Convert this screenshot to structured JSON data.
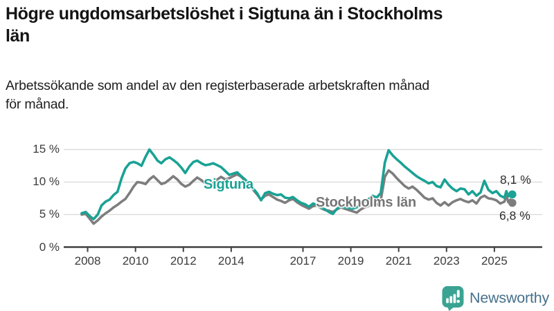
{
  "header": {
    "title_lines": [
      "Högre ungdomsarbetslöshet i Sigtuna än i Stockholms",
      "län"
    ],
    "subtitle_lines": [
      "Arbetssökande som andel av den registerbaserade arbetskraften månad",
      "för månad."
    ]
  },
  "chart_data": {
    "type": "line",
    "title": "Högre ungdomsarbetslöshet i Sigtuna än i Stockholms län",
    "subtitle": "Arbetssökande som andel av den registerbaserade arbetskraften månad för månad.",
    "unit": "%",
    "grid": "horizontal",
    "legend_position": "inline-labels",
    "x_axis": {
      "ticks": [
        2008,
        2010,
        2012,
        2014,
        2017,
        2019,
        2021,
        2023,
        2025
      ],
      "range": [
        2007.0,
        2027.0
      ]
    },
    "y_axis": {
      "tick_values": [
        0,
        5,
        10,
        15
      ],
      "tick_labels": [
        "0 %",
        "5 %",
        "10 %",
        "15 %"
      ],
      "range": [
        0,
        16
      ]
    },
    "x": [
      2007.75,
      2007.92,
      2008.08,
      2008.25,
      2008.42,
      2008.58,
      2008.75,
      2008.92,
      2009.08,
      2009.25,
      2009.42,
      2009.58,
      2009.75,
      2009.92,
      2010.08,
      2010.25,
      2010.42,
      2010.58,
      2010.75,
      2010.92,
      2011.08,
      2011.25,
      2011.42,
      2011.58,
      2011.75,
      2011.92,
      2012.08,
      2012.25,
      2012.42,
      2012.58,
      2012.75,
      2012.92,
      2013.08,
      2013.25,
      2013.42,
      2013.58,
      2013.75,
      2013.92,
      2014.08,
      2014.25,
      2014.42,
      2014.58,
      2014.75,
      2014.92,
      2015.08,
      2015.25,
      2015.42,
      2015.58,
      2015.75,
      2015.92,
      2016.08,
      2016.25,
      2016.42,
      2016.58,
      2016.75,
      2016.92,
      2017.08,
      2017.25,
      2017.42,
      2017.58,
      2017.75,
      2017.92,
      2018.08,
      2018.25,
      2018.42,
      2018.58,
      2018.75,
      2018.92,
      2019.08,
      2019.25,
      2019.42,
      2019.58,
      2019.75,
      2019.92,
      2020.08,
      2020.25,
      2020.42,
      2020.58,
      2020.75,
      2020.92,
      2021.08,
      2021.25,
      2021.42,
      2021.58,
      2021.75,
      2021.92,
      2022.08,
      2022.25,
      2022.42,
      2022.58,
      2022.75,
      2022.92,
      2023.08,
      2023.25,
      2023.42,
      2023.58,
      2023.75,
      2023.92,
      2024.08,
      2024.25,
      2024.42,
      2024.58,
      2024.75,
      2024.92,
      2025.08,
      2025.25,
      2025.42,
      2025.5,
      2025.58,
      2025.67,
      2025.75
    ],
    "series": [
      {
        "name": "Sigtuna",
        "color": "#19a295",
        "end_label": "8,1 %",
        "end_value": 8.1,
        "values": [
          5.2,
          5.4,
          4.8,
          4.3,
          5.0,
          6.4,
          7.0,
          7.3,
          8.0,
          8.5,
          10.6,
          12.1,
          12.9,
          13.1,
          12.9,
          12.5,
          13.9,
          15.0,
          14.2,
          13.3,
          12.9,
          13.5,
          13.8,
          13.4,
          12.9,
          12.2,
          11.4,
          12.4,
          13.1,
          13.3,
          12.9,
          12.6,
          12.7,
          12.9,
          12.6,
          12.3,
          11.7,
          11.1,
          11.3,
          11.5,
          10.9,
          10.4,
          9.7,
          9.0,
          8.3,
          7.2,
          8.3,
          8.5,
          8.2,
          8.0,
          8.1,
          7.6,
          7.5,
          7.7,
          7.2,
          6.8,
          6.6,
          6.2,
          6.7,
          6.5,
          6.1,
          5.8,
          5.4,
          5.1,
          5.9,
          6.3,
          6.1,
          6.0,
          5.9,
          6.1,
          6.6,
          7.0,
          7.4,
          7.9,
          7.6,
          8.3,
          13.0,
          14.9,
          14.1,
          13.5,
          13.0,
          12.4,
          11.9,
          11.4,
          10.9,
          10.5,
          10.2,
          9.8,
          10.0,
          9.4,
          9.2,
          10.4,
          9.6,
          9.0,
          8.6,
          9.0,
          8.9,
          8.1,
          8.6,
          7.9,
          8.4,
          10.2,
          8.8,
          8.3,
          8.6,
          7.9,
          7.6,
          8.6,
          7.8,
          8.4,
          8.1
        ]
      },
      {
        "name": "Stockholms län",
        "color": "#7d7d7d",
        "end_label": "6,8 %",
        "end_value": 6.8,
        "values": [
          5.0,
          5.1,
          4.4,
          3.6,
          4.1,
          4.7,
          5.2,
          5.6,
          6.1,
          6.5,
          7.0,
          7.4,
          8.3,
          9.3,
          10.0,
          9.9,
          9.7,
          10.4,
          10.9,
          10.3,
          9.7,
          9.9,
          10.4,
          10.9,
          10.4,
          9.7,
          9.3,
          9.6,
          10.2,
          10.7,
          10.3,
          9.8,
          9.4,
          9.9,
          10.4,
          10.8,
          10.4,
          10.6,
          10.9,
          11.2,
          10.8,
          10.2,
          9.5,
          8.8,
          8.1,
          7.3,
          7.9,
          8.1,
          7.7,
          7.3,
          7.1,
          6.8,
          7.2,
          7.4,
          6.9,
          6.5,
          6.2,
          5.9,
          6.3,
          6.4,
          6.0,
          5.7,
          5.6,
          5.4,
          5.8,
          6.1,
          5.9,
          5.7,
          5.5,
          5.3,
          5.8,
          6.1,
          6.3,
          6.6,
          6.5,
          7.2,
          10.8,
          11.8,
          11.3,
          10.6,
          10.0,
          9.4,
          9.0,
          9.3,
          8.8,
          8.2,
          7.6,
          7.3,
          7.5,
          6.8,
          6.4,
          6.9,
          6.4,
          6.9,
          7.2,
          7.4,
          7.1,
          6.9,
          7.2,
          6.7,
          7.6,
          7.9,
          7.5,
          7.4,
          7.2,
          6.7,
          7.0,
          8.0,
          6.9,
          7.3,
          6.8
        ]
      }
    ],
    "colors": {
      "axis": "#404040",
      "gridline": "#dadada",
      "tick_text": "#3b3b3b"
    }
  },
  "branding": {
    "logo_text": "Newsworthy",
    "logo_color": "#3aa392",
    "logo_text_color": "#46708c"
  }
}
